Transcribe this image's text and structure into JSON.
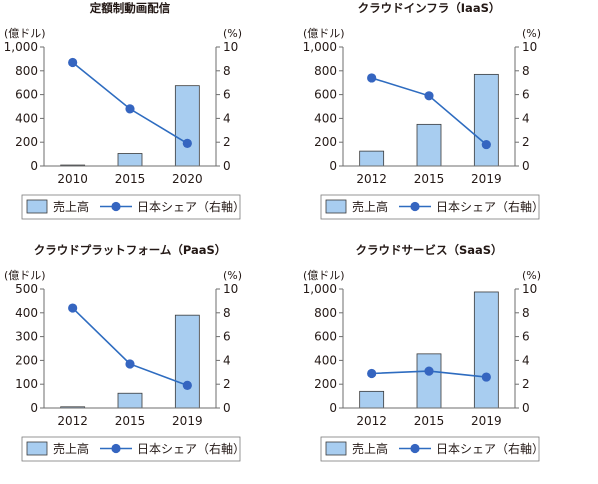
{
  "chart_data": [
    {
      "type": "bar",
      "title": "定額制動画配信",
      "y_left_unit": "(億ドル)",
      "y_right_unit": "(%)",
      "categories": [
        "2010",
        "2015",
        "2020"
      ],
      "ylim_left": [
        0,
        1000
      ],
      "yticks_left": [
        "0",
        "200",
        "400",
        "600",
        "800",
        "1,000"
      ],
      "ylim_right": [
        0,
        10
      ],
      "yticks_right": [
        "0",
        "2",
        "4",
        "6",
        "8",
        "10"
      ],
      "series": [
        {
          "name": "売上高",
          "kind": "bar",
          "axis": "left",
          "values": [
            8,
            105,
            675
          ]
        },
        {
          "name": "日本シェア（右軸）",
          "kind": "line",
          "axis": "right",
          "values": [
            8.7,
            4.8,
            1.9
          ]
        }
      ],
      "legend": {
        "position": "bottom",
        "bar_label": "売上高",
        "line_label": "日本シェア（右軸）"
      }
    },
    {
      "type": "bar",
      "title": "クラウドインフラ（IaaS）",
      "y_left_unit": "(億ドル)",
      "y_right_unit": "(%)",
      "categories": [
        "2012",
        "2015",
        "2019"
      ],
      "ylim_left": [
        0,
        1000
      ],
      "yticks_left": [
        "0",
        "200",
        "400",
        "600",
        "800",
        "1,000"
      ],
      "ylim_right": [
        0,
        10
      ],
      "yticks_right": [
        "0",
        "2",
        "4",
        "6",
        "8",
        "10"
      ],
      "series": [
        {
          "name": "売上高",
          "kind": "bar",
          "axis": "left",
          "values": [
            125,
            350,
            770
          ]
        },
        {
          "name": "日本シェア（右軸）",
          "kind": "line",
          "axis": "right",
          "values": [
            7.4,
            5.9,
            1.8
          ]
        }
      ],
      "legend": {
        "position": "bottom",
        "bar_label": "売上高",
        "line_label": "日本シェア（右軸）"
      }
    },
    {
      "type": "bar",
      "title": "クラウドプラットフォーム（PaaS）",
      "y_left_unit": "(億ドル)",
      "y_right_unit": "(%)",
      "categories": [
        "2012",
        "2015",
        "2019"
      ],
      "ylim_left": [
        0,
        500
      ],
      "yticks_left": [
        "0",
        "100",
        "200",
        "300",
        "400",
        "500"
      ],
      "ylim_right": [
        0,
        10
      ],
      "yticks_right": [
        "0",
        "2",
        "4",
        "6",
        "8",
        "10"
      ],
      "series": [
        {
          "name": "売上高",
          "kind": "bar",
          "axis": "left",
          "values": [
            5,
            62,
            390
          ]
        },
        {
          "name": "日本シェア（右軸）",
          "kind": "line",
          "axis": "right",
          "values": [
            8.4,
            3.7,
            1.9
          ]
        }
      ],
      "legend": {
        "position": "bottom",
        "bar_label": "売上高",
        "line_label": "日本シェア（右軸）"
      }
    },
    {
      "type": "bar",
      "title": "クラウドサービス（SaaS）",
      "y_left_unit": "(億ドル)",
      "y_right_unit": "(%)",
      "categories": [
        "2012",
        "2015",
        "2019"
      ],
      "ylim_left": [
        0,
        1000
      ],
      "yticks_left": [
        "0",
        "200",
        "400",
        "600",
        "800",
        "1,000"
      ],
      "ylim_right": [
        0,
        10
      ],
      "yticks_right": [
        "0",
        "2",
        "4",
        "6",
        "8",
        "10"
      ],
      "series": [
        {
          "name": "売上高",
          "kind": "bar",
          "axis": "left",
          "values": [
            140,
            455,
            975
          ]
        },
        {
          "name": "日本シェア（右軸）",
          "kind": "line",
          "axis": "right",
          "values": [
            2.9,
            3.1,
            2.6
          ]
        }
      ],
      "legend": {
        "position": "bottom",
        "bar_label": "売上高",
        "line_label": "日本シェア（右軸）"
      }
    }
  ],
  "colors": {
    "bar_fill": "#a8cdf0",
    "bar_stroke": "#3a3a3a",
    "line": "#2e6cc0",
    "marker": "#3565c0",
    "axis": "#6e6e6e",
    "text": "#231815"
  }
}
